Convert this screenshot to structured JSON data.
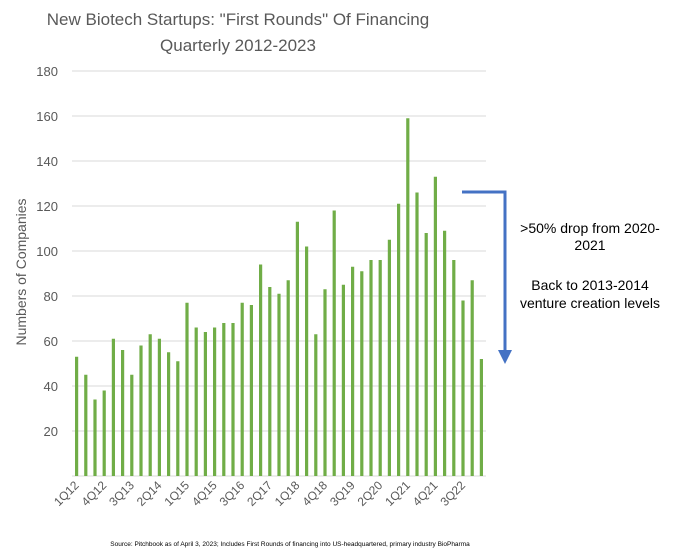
{
  "chart_data": {
    "type": "bar",
    "title": "New Biotech Startups: \"First Rounds\" Of Financing",
    "subtitle": "Quarterly 2012-2023",
    "ylabel": "Numbers of Companies",
    "xlabel": "",
    "ylim": [
      0,
      180
    ],
    "yticks": [
      20,
      40,
      60,
      80,
      100,
      120,
      140,
      160,
      180
    ],
    "grid": true,
    "bar_color": "#70ad47",
    "categories": [
      "1Q12",
      "2Q12",
      "3Q12",
      "4Q12",
      "1Q13",
      "2Q13",
      "3Q13",
      "4Q13",
      "1Q14",
      "2Q14",
      "3Q14",
      "4Q14",
      "1Q15",
      "2Q15",
      "3Q15",
      "4Q15",
      "1Q16",
      "2Q16",
      "3Q16",
      "4Q16",
      "1Q17",
      "2Q17",
      "3Q17",
      "4Q17",
      "1Q18",
      "2Q18",
      "3Q18",
      "4Q18",
      "1Q19",
      "2Q19",
      "3Q19",
      "4Q19",
      "1Q20",
      "2Q20",
      "3Q20",
      "4Q20",
      "1Q21",
      "2Q21",
      "3Q21",
      "4Q21",
      "1Q22",
      "2Q22",
      "3Q22",
      "4Q22",
      "1Q23"
    ],
    "x_tick_labels": [
      "1Q12",
      "4Q12",
      "3Q13",
      "2Q14",
      "1Q15",
      "4Q15",
      "3Q16",
      "2Q17",
      "1Q18",
      "4Q18",
      "3Q19",
      "2Q20",
      "1Q21",
      "4Q21",
      "3Q22"
    ],
    "values": [
      53,
      45,
      34,
      38,
      61,
      56,
      45,
      58,
      63,
      61,
      55,
      51,
      77,
      66,
      64,
      66,
      68,
      68,
      77,
      76,
      94,
      84,
      81,
      87,
      113,
      102,
      63,
      83,
      118,
      85,
      93,
      91,
      96,
      96,
      105,
      121,
      159,
      126,
      108,
      133,
      109,
      96,
      78,
      87,
      52
    ],
    "annotations": [
      {
        "text": ">50% drop from 2020-2021"
      },
      {
        "text": "Back to 2013-2014 venture creation levels"
      }
    ],
    "arrow_color": "#4472c4"
  },
  "annotation_text": {
    "line1a": ">50% drop from 2020-",
    "line1b": "2021",
    "line2a": "Back to 2013-2014",
    "line2b": "venture creation levels"
  },
  "source": "Source: Pitchbook as of April 3, 2023; Includes First Rounds of financing into US-headquartered, primary industry BioPharma"
}
